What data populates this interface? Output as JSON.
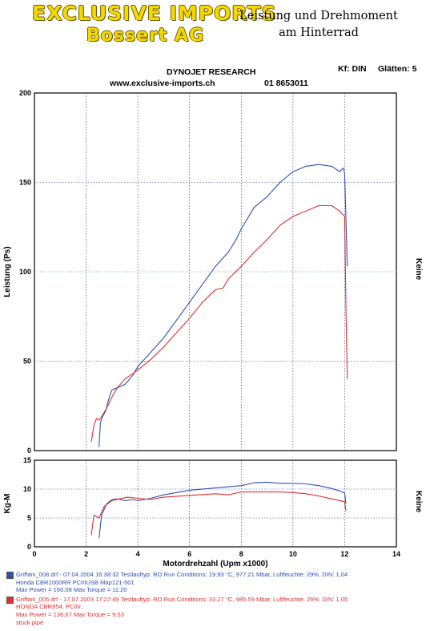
{
  "header": {
    "logo_line1": "EXCLUSIVE IMPORTS",
    "logo_line2": "Bossert AG",
    "title_line1": "Leistung und Drehmoment",
    "title_line2": "am Hinterrad",
    "company": "DYNOJET RESEARCH",
    "website": "www.exclusive-imports.ch",
    "phone": "01 8653011",
    "kf_label": "Kf: DIN",
    "smoothing_label": "Glätten: 5"
  },
  "colors": {
    "run1": "#3050b0",
    "run2": "#e03030",
    "grid_blue": "#2a2aa0",
    "grid_green": "#2a9a2a"
  },
  "chart_data": [
    {
      "type": "line",
      "ylabel": "Leistung (Ps)",
      "right_label": "Keine",
      "ylim": [
        0,
        200
      ],
      "xlim": [
        0,
        14
      ],
      "yticks": [
        0,
        50,
        100,
        150,
        200
      ],
      "grid": true,
      "series": [
        {
          "name": "Griffani_008.drf",
          "color": "#3050b0",
          "x": [
            2.5,
            2.55,
            2.6,
            2.75,
            2.9,
            3.0,
            3.2,
            3.5,
            3.8,
            4.0,
            4.5,
            5.0,
            5.5,
            6.0,
            6.5,
            7.0,
            7.5,
            7.8,
            8.0,
            8.5,
            9.0,
            9.5,
            10.0,
            10.5,
            11.0,
            11.5,
            11.8,
            11.95,
            12.0,
            12.05,
            12.1
          ],
          "y": [
            2,
            15,
            18,
            22,
            30,
            34,
            35,
            37,
            42,
            47,
            55,
            63,
            73,
            83,
            93,
            103,
            111,
            118,
            124,
            136,
            142,
            150,
            156,
            159,
            160,
            159,
            156,
            158,
            155,
            130,
            103
          ]
        },
        {
          "name": "Griffani_005.drf",
          "color": "#e03030",
          "x": [
            2.2,
            2.3,
            2.4,
            2.5,
            2.6,
            2.8,
            3.0,
            3.2,
            3.5,
            3.8,
            4.0,
            4.5,
            5.0,
            5.5,
            6.0,
            6.5,
            7.0,
            7.3,
            7.5,
            8.0,
            8.5,
            9.0,
            9.5,
            10.0,
            10.5,
            11.0,
            11.5,
            11.8,
            12.0,
            12.05,
            12.1
          ],
          "y": [
            5,
            14,
            18,
            17,
            19,
            24,
            30,
            35,
            40,
            43,
            45,
            51,
            58,
            66,
            74,
            83,
            90,
            91,
            96,
            103,
            111,
            118,
            126,
            131,
            134,
            137,
            137,
            134,
            131,
            80,
            40
          ]
        }
      ]
    },
    {
      "type": "line",
      "ylabel": "Kg-M",
      "xlabel": "Motordrehzahl (Upm x1000)",
      "right_label": "Keine",
      "ylim": [
        0,
        15
      ],
      "xlim": [
        0,
        14
      ],
      "yticks": [
        0,
        5,
        10,
        15
      ],
      "xticks": [
        0,
        2,
        4,
        6,
        8,
        10,
        12,
        14
      ],
      "grid": true,
      "series": [
        {
          "name": "Griffani_008.drf",
          "color": "#3050b0",
          "x": [
            2.5,
            2.6,
            2.8,
            3.0,
            3.2,
            3.5,
            3.8,
            4.0,
            4.5,
            5.0,
            6.0,
            7.0,
            8.0,
            8.5,
            9.0,
            9.5,
            10.0,
            10.5,
            11.0,
            11.5,
            11.8,
            12.0,
            12.05
          ],
          "y": [
            1.5,
            5.5,
            7.5,
            8.2,
            8.3,
            8.0,
            8.2,
            8.0,
            8.4,
            9.0,
            9.8,
            10.2,
            10.6,
            11.1,
            11.2,
            11.0,
            11.0,
            10.9,
            10.6,
            10.1,
            9.7,
            9.3,
            7.5
          ]
        },
        {
          "name": "Griffani_005.drf",
          "color": "#e03030",
          "x": [
            2.2,
            2.3,
            2.5,
            2.7,
            3.0,
            3.3,
            3.6,
            4.0,
            4.5,
            5.0,
            6.0,
            7.0,
            7.5,
            7.8,
            8.0,
            8.5,
            9.0,
            9.5,
            10.0,
            10.5,
            11.0,
            11.5,
            12.0,
            12.05
          ],
          "y": [
            2.0,
            5.5,
            5.0,
            7.0,
            8.0,
            8.3,
            8.6,
            8.4,
            8.2,
            8.6,
            8.9,
            9.2,
            9.0,
            9.3,
            9.5,
            9.5,
            9.5,
            9.5,
            9.4,
            9.2,
            8.8,
            8.3,
            7.8,
            6.2
          ]
        }
      ]
    }
  ],
  "legend": {
    "run1": {
      "line1": "Griffani_008.drf - 07.04.2004 16:38:32   Testlauftyp: RO  Run Conditions: 19.93 °C, 977.21 Mbar,   Luftfeuchte: 29%, DIN: 1.04",
      "line2": "Honda CBR1000RR PCIIIUSB Map121-501",
      "line3": "Max Power = 160.08  Max Torque = 11.20"
    },
    "run2": {
      "line1": "Griffani_005.drf - 17.07.2003 17:27:49   Testlauftyp: RO  Run Conditions: 33.27 °C, 985.59 Mbar,   Luftfeuchte: 26%, DIN: 1.05",
      "line2": "HONDA CBR954, PCIIIr,",
      "line3": "Max Power = 136.67  Max Torque = 9.53",
      "line4": "stock pipe"
    }
  }
}
